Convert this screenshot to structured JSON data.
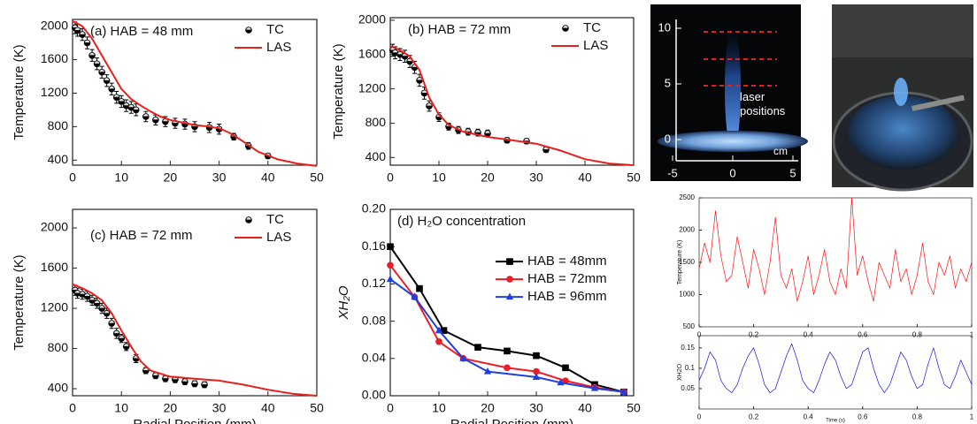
{
  "chart_data": [
    {
      "type": "line",
      "annotation": "(a) HAB = 48 mm",
      "ylabel": "Temperature (K)",
      "xlim": [
        0,
        50
      ],
      "ylim": [
        340,
        2080
      ],
      "xticks": [
        0,
        10,
        20,
        30,
        40,
        50
      ],
      "yticks": [
        400,
        800,
        1200,
        1600,
        2000
      ],
      "legend": "upper right",
      "series": [
        {
          "name": "TC",
          "color": "#000000",
          "marker": "halfcircle",
          "line": false,
          "x": [
            0.5,
            1,
            2,
            3,
            4,
            5,
            6,
            7,
            8,
            9,
            10,
            11,
            12,
            13,
            15,
            17,
            19,
            21,
            23,
            25,
            28,
            30,
            33,
            36,
            40
          ],
          "values": [
            1980,
            1950,
            1900,
            1800,
            1650,
            1550,
            1450,
            1350,
            1250,
            1150,
            1100,
            1050,
            1030,
            1000,
            920,
            880,
            860,
            840,
            830,
            800,
            790,
            770,
            680,
            570,
            450
          ],
          "errors": [
            70,
            70,
            70,
            70,
            70,
            70,
            70,
            70,
            70,
            70,
            70,
            70,
            70,
            70,
            60,
            60,
            60,
            60,
            60,
            60,
            60,
            60,
            40,
            40,
            30
          ]
        },
        {
          "name": "LAS",
          "color": "#e8201c",
          "marker": null,
          "line": true,
          "x": [
            0,
            2,
            4,
            6,
            8,
            10,
            12,
            14,
            16,
            18,
            20,
            25,
            28,
            30,
            32,
            35,
            38,
            42,
            46,
            50
          ],
          "values": [
            2060,
            2000,
            1850,
            1650,
            1450,
            1250,
            1130,
            1050,
            980,
            920,
            880,
            820,
            800,
            780,
            730,
            620,
            500,
            410,
            360,
            330
          ]
        }
      ]
    },
    {
      "type": "line",
      "annotation": "(b) HAB = 72 mm",
      "ylabel": "Temperature (K)",
      "xlim": [
        0,
        50
      ],
      "ylim": [
        310,
        2030
      ],
      "xticks": [
        0,
        10,
        20,
        30,
        40,
        50
      ],
      "yticks": [
        400,
        800,
        1200,
        1600,
        2000
      ],
      "legend": "upper right",
      "series": [
        {
          "name": "TC",
          "color": "#000000",
          "marker": "halfcircle",
          "line": false,
          "x": [
            0.5,
            1,
            2,
            3,
            4,
            5,
            6,
            7,
            8,
            10,
            12,
            14,
            16,
            18,
            20,
            24,
            28,
            32
          ],
          "values": [
            1650,
            1620,
            1600,
            1580,
            1520,
            1450,
            1300,
            1150,
            1000,
            870,
            760,
            720,
            700,
            690,
            680,
            600,
            590,
            490
          ],
          "errors": [
            70,
            70,
            70,
            70,
            70,
            70,
            70,
            70,
            60,
            50,
            40,
            40,
            40,
            40,
            40,
            30,
            30,
            30
          ]
        },
        {
          "name": "LAS",
          "color": "#e8201c",
          "marker": null,
          "line": true,
          "x": [
            0,
            2,
            4,
            6,
            8,
            10,
            12,
            15,
            20,
            25,
            30,
            35,
            40,
            45,
            50
          ],
          "values": [
            1700,
            1650,
            1580,
            1420,
            1100,
            900,
            780,
            700,
            640,
            600,
            560,
            480,
            380,
            330,
            310
          ]
        }
      ]
    },
    {
      "type": "line",
      "annotation": "(c) HAB = 72 mm",
      "xlabel": "Radial Position (mm)",
      "ylabel": "Temperature (K)",
      "xlim": [
        0,
        50
      ],
      "ylim": [
        330,
        2185
      ],
      "xticks": [
        0,
        10,
        20,
        30,
        40,
        50
      ],
      "yticks": [
        400,
        800,
        1200,
        1600,
        2000
      ],
      "legend": "upper right",
      "series": [
        {
          "name": "TC",
          "color": "#000000",
          "marker": "halfcircle",
          "line": false,
          "x": [
            0.5,
            1,
            2,
            3,
            4,
            5,
            6,
            7,
            8,
            9,
            10,
            11,
            13,
            15,
            17,
            19,
            21,
            23,
            25,
            27
          ],
          "values": [
            1380,
            1350,
            1340,
            1320,
            1280,
            1250,
            1200,
            1150,
            1050,
            950,
            900,
            820,
            700,
            580,
            530,
            500,
            490,
            470,
            450,
            440
          ],
          "errors": [
            50,
            50,
            50,
            50,
            50,
            50,
            50,
            50,
            50,
            50,
            40,
            40,
            40,
            30,
            30,
            30,
            30,
            30,
            30,
            30
          ]
        },
        {
          "name": "LAS",
          "color": "#e8201c",
          "marker": null,
          "line": true,
          "x": [
            0,
            2,
            4,
            6,
            8,
            10,
            12,
            14,
            16,
            20,
            25,
            30,
            35,
            40,
            45,
            50
          ],
          "values": [
            1440,
            1400,
            1350,
            1280,
            1150,
            980,
            820,
            670,
            580,
            520,
            500,
            480,
            440,
            390,
            350,
            330
          ]
        }
      ]
    },
    {
      "type": "line",
      "annotation": "(d) H₂O concentration",
      "xlabel": "Radial Position (mm)",
      "ylabel": "XH₂O",
      "xlim": [
        0,
        50
      ],
      "ylim": [
        0,
        0.2
      ],
      "xticks": [
        0,
        10,
        20,
        30,
        40,
        50
      ],
      "yticks": [
        {
          "value": 0,
          "label": "0.00"
        },
        {
          "value": 0.04,
          "label": "0.04"
        },
        {
          "value": 0.08,
          "label": "0.08"
        },
        {
          "value": 0.12,
          "label": "0.12"
        },
        {
          "value": 0.16,
          "label": "0.16"
        },
        {
          "value": 0.2,
          "label": "0.20"
        }
      ],
      "legend": "center right",
      "series": [
        {
          "name": "HAB = 48mm",
          "color": "#000000",
          "marker": "square",
          "line": true,
          "x": [
            0,
            6,
            11,
            18,
            24,
            30,
            36,
            42,
            48
          ],
          "values": [
            0.16,
            0.115,
            0.07,
            0.052,
            0.048,
            0.043,
            0.03,
            0.012,
            0.004
          ]
        },
        {
          "name": "HAB = 72mm",
          "color": "#ee1c25",
          "marker": "circle",
          "line": true,
          "x": [
            0,
            5,
            10,
            15,
            24,
            30,
            36,
            42,
            48
          ],
          "values": [
            0.14,
            0.106,
            0.058,
            0.04,
            0.03,
            0.026,
            0.016,
            0.009,
            0.004
          ]
        },
        {
          "name": "HAB = 96mm",
          "color": "#1f3fe0",
          "marker": "triangle",
          "line": true,
          "x": [
            0,
            5,
            10,
            15,
            20,
            30,
            35,
            42,
            48
          ],
          "values": [
            0.125,
            0.106,
            0.07,
            0.04,
            0.026,
            0.02,
            0.014,
            0.008,
            0.004
          ]
        }
      ]
    },
    {
      "type": "line",
      "ylabel": "Temperature (K)",
      "xlim": [
        0,
        1
      ],
      "ylim": [
        500,
        2500
      ],
      "xticks": [
        0,
        0.2,
        0.4,
        0.6,
        0.8,
        1
      ],
      "yticks": [
        500,
        1000,
        1500,
        2000,
        2500
      ],
      "series": [
        {
          "color": "#ff1010",
          "marker": null,
          "line": true,
          "x": [
            0,
            0.02,
            0.04,
            0.06,
            0.08,
            0.1,
            0.12,
            0.14,
            0.16,
            0.18,
            0.2,
            0.22,
            0.24,
            0.26,
            0.28,
            0.3,
            0.32,
            0.34,
            0.36,
            0.38,
            0.4,
            0.42,
            0.44,
            0.46,
            0.48,
            0.5,
            0.52,
            0.54,
            0.56,
            0.58,
            0.6,
            0.62,
            0.64,
            0.66,
            0.68,
            0.7,
            0.72,
            0.74,
            0.76,
            0.78,
            0.8,
            0.82,
            0.84,
            0.86,
            0.88,
            0.9,
            0.92,
            0.94,
            0.96,
            0.98,
            1
          ],
          "values": [
            1400,
            1800,
            1500,
            2300,
            1600,
            1200,
            1300,
            1900,
            1500,
            1100,
            1700,
            1400,
            1000,
            1500,
            2200,
            1300,
            1100,
            1400,
            900,
            1200,
            1600,
            1000,
            1300,
            1700,
            1200,
            1000,
            1400,
            1100,
            2500,
            1300,
            1600,
            1200,
            900,
            1500,
            1300,
            1100,
            1700,
            1200,
            1400,
            1000,
            1300,
            1800,
            1200,
            1000,
            1500,
            1300,
            1600,
            1100,
            1400,
            1200,
            1500
          ]
        }
      ]
    },
    {
      "type": "line",
      "xlabel": "Time (s)",
      "ylabel": "XH2O",
      "xlim": [
        0,
        1
      ],
      "ylim": [
        0,
        0.18
      ],
      "xticks": [
        0,
        0.2,
        0.4,
        0.6,
        0.8,
        1
      ],
      "yticks": [
        0.05,
        0.1,
        0.15
      ],
      "series": [
        {
          "color": "#1010ee",
          "marker": null,
          "line": true,
          "x": [
            0,
            0.02,
            0.04,
            0.06,
            0.08,
            0.1,
            0.12,
            0.14,
            0.16,
            0.18,
            0.2,
            0.22,
            0.24,
            0.26,
            0.28,
            0.3,
            0.32,
            0.34,
            0.36,
            0.38,
            0.4,
            0.42,
            0.44,
            0.46,
            0.48,
            0.5,
            0.52,
            0.54,
            0.56,
            0.58,
            0.6,
            0.62,
            0.64,
            0.66,
            0.68,
            0.7,
            0.72,
            0.74,
            0.76,
            0.78,
            0.8,
            0.82,
            0.84,
            0.86,
            0.88,
            0.9,
            0.92,
            0.94,
            0.96,
            0.98,
            1
          ],
          "values": [
            0.07,
            0.1,
            0.14,
            0.12,
            0.07,
            0.05,
            0.04,
            0.06,
            0.1,
            0.13,
            0.15,
            0.11,
            0.06,
            0.04,
            0.05,
            0.09,
            0.13,
            0.16,
            0.12,
            0.07,
            0.05,
            0.04,
            0.07,
            0.11,
            0.14,
            0.12,
            0.08,
            0.05,
            0.06,
            0.1,
            0.14,
            0.15,
            0.1,
            0.06,
            0.04,
            0.06,
            0.1,
            0.14,
            0.12,
            0.08,
            0.05,
            0.06,
            0.11,
            0.15,
            0.1,
            0.06,
            0.05,
            0.08,
            0.12,
            0.09,
            0.06
          ]
        }
      ]
    }
  ],
  "flame_photo": {
    "yticks": [
      10,
      5,
      0
    ],
    "xticks": [
      -5,
      0,
      5
    ],
    "unit": "cm",
    "annotation": "laser positions"
  }
}
